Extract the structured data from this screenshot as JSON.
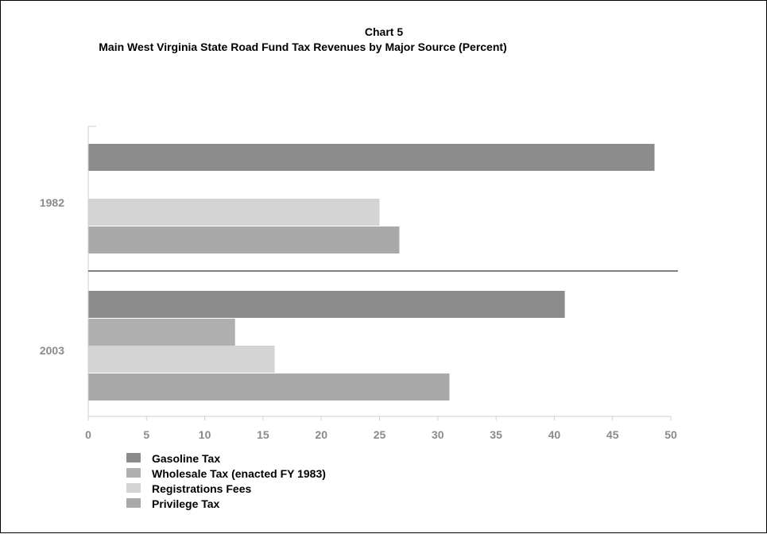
{
  "chart_data": {
    "type": "bar",
    "orientation": "horizontal",
    "title": "Chart 5",
    "subtitle": "Main West Virginia State Road Fund Tax Revenues by Major Source (Percent)",
    "categories": [
      "1982",
      "2003"
    ],
    "xlim": [
      0,
      50
    ],
    "xticks": [
      0,
      5,
      10,
      15,
      20,
      25,
      30,
      35,
      40,
      45,
      50
    ],
    "series": [
      {
        "name": "Gasoline Tax",
        "color": "#8c8c8c",
        "values": [
          48.6,
          40.9
        ]
      },
      {
        "name": "Wholesale Tax (enacted FY 1983)",
        "color": "#b0b0b0",
        "values": [
          null,
          12.6
        ]
      },
      {
        "name": "Registrations Fees",
        "color": "#d4d4d4",
        "values": [
          25.0,
          16.0
        ]
      },
      {
        "name": "Privilege Tax",
        "color": "#a9a9a9",
        "values": [
          26.7,
          31.0
        ]
      }
    ],
    "grid": false,
    "legend_position": "bottom-left"
  }
}
